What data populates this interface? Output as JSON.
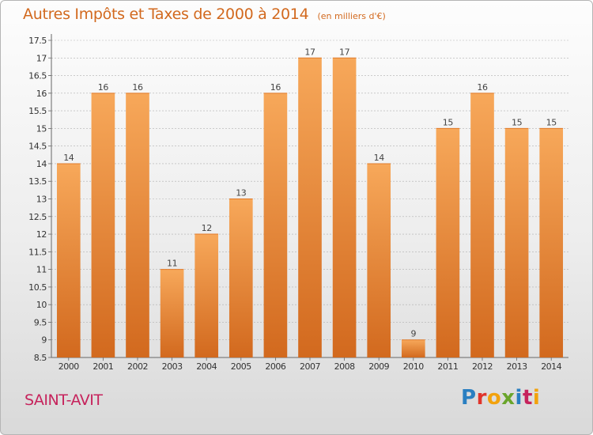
{
  "header": {
    "title": "Autres Impôts et Taxes de 2000 à 2014",
    "unit": "(en milliers d'€)"
  },
  "footer": {
    "place": "SAINT-AVIT",
    "logo": [
      "P",
      "r",
      "o",
      "x",
      "i",
      "t",
      "i"
    ],
    "logo_colors": [
      "#2a7fc1",
      "#e0342b",
      "#f2a20d",
      "#6aa52b",
      "#2a7fc1",
      "#c6235c",
      "#f2a20d"
    ]
  },
  "colors": {
    "bar_top": "#f7a85a",
    "bar_bottom": "#d2691e",
    "title": "#d2691e",
    "place": "#c6235c",
    "grid": "#b0b0b0"
  },
  "chart_data": {
    "type": "bar",
    "title": "Autres Impôts et Taxes de 2000 à 2014",
    "xlabel": "",
    "ylabel": "",
    "categories": [
      "2000",
      "2001",
      "2002",
      "2003",
      "2004",
      "2005",
      "2006",
      "2007",
      "2008",
      "2009",
      "2010",
      "2011",
      "2012",
      "2013",
      "2014"
    ],
    "values": [
      14,
      16,
      16,
      11,
      12,
      13,
      16,
      17,
      17,
      14,
      9,
      15,
      16,
      15,
      15
    ],
    "ylim": [
      8.5,
      17.5
    ],
    "yticks": [
      "8.5",
      "9",
      "9.5",
      "10",
      "10.5",
      "11",
      "11.5",
      "12",
      "12.5",
      "13",
      "13.5",
      "14",
      "14.5",
      "15",
      "15.5",
      "16",
      "16.5",
      "17",
      "17.5"
    ],
    "grid": true,
    "data_labels": true
  }
}
